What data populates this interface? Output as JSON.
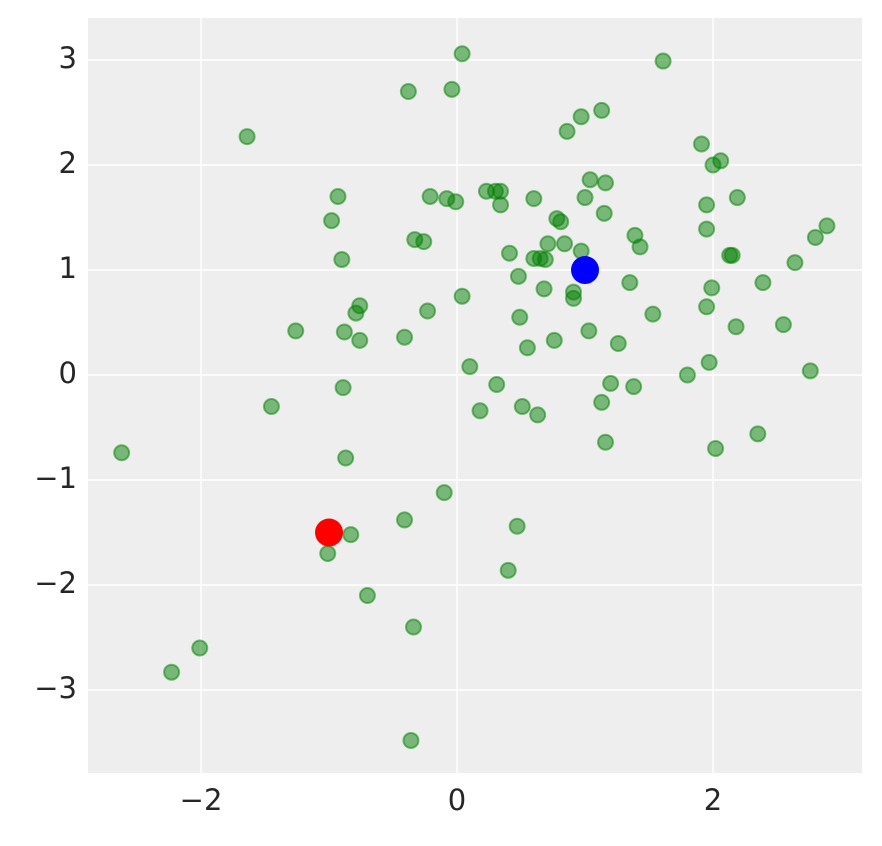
{
  "chart_data": {
    "type": "scatter",
    "xlim": [
      -2.883,
      3.164
    ],
    "ylim": [
      -3.79,
      3.4
    ],
    "xticks": [
      {
        "value": -2,
        "label": "−2"
      },
      0,
      2
    ],
    "yticks": [
      {
        "value": -3,
        "label": "−3"
      },
      {
        "value": -2,
        "label": "−2"
      },
      {
        "value": -1,
        "label": "−1"
      },
      0,
      1,
      2,
      3
    ],
    "grid": true,
    "series": [
      {
        "color": "green",
        "alpha": 0.5,
        "size": "small",
        "x": [
          -2.62,
          -1.64,
          -2.23,
          -2.01,
          -1.45,
          -1.26,
          -0.93,
          -0.98,
          -0.9,
          -0.79,
          -0.76,
          -0.88,
          -0.76,
          -0.89,
          -0.87,
          -0.83,
          -1.01,
          -0.7,
          -0.41,
          -0.41,
          -0.34,
          -0.36,
          -0.38,
          -0.04,
          0.04,
          -0.33,
          -0.26,
          -0.21,
          -0.08,
          -0.01,
          -0.23,
          0.04,
          0.1,
          -0.1,
          0.18,
          0.31,
          0.23,
          0.3,
          0.34,
          0.34,
          0.41,
          0.48,
          0.49,
          0.51,
          0.47,
          0.4,
          0.55,
          0.63,
          0.6,
          0.6,
          0.65,
          0.69,
          0.71,
          0.68,
          0.76,
          0.78,
          0.81,
          0.84,
          0.86,
          0.91,
          0.91,
          0.97,
          0.97,
          1.0,
          1.04,
          1.03,
          1.13,
          1.16,
          1.15,
          1.13,
          1.16,
          1.2,
          1.26,
          1.35,
          1.38,
          1.39,
          1.43,
          1.53,
          1.61,
          1.8,
          1.91,
          1.95,
          1.95,
          1.95,
          1.97,
          2.0,
          2.06,
          1.99,
          2.02,
          2.13,
          2.15,
          2.19,
          2.18,
          2.35,
          2.39,
          2.55,
          2.64,
          2.76,
          2.8,
          2.89
        ],
        "y": [
          -0.74,
          2.27,
          -2.83,
          -2.6,
          -0.3,
          0.42,
          1.7,
          1.47,
          1.1,
          0.59,
          0.66,
          0.41,
          0.33,
          -0.12,
          -0.79,
          -1.52,
          -1.7,
          -2.1,
          0.36,
          -1.38,
          -2.4,
          -3.48,
          2.7,
          2.72,
          3.06,
          1.29,
          1.27,
          1.7,
          1.68,
          1.65,
          0.61,
          0.75,
          0.08,
          -1.12,
          -0.34,
          -0.09,
          1.75,
          1.75,
          1.75,
          1.62,
          1.16,
          0.94,
          0.55,
          -0.3,
          -1.44,
          -1.86,
          0.26,
          -0.38,
          1.68,
          1.11,
          1.11,
          1.1,
          1.25,
          0.82,
          0.33,
          1.49,
          1.46,
          1.25,
          2.32,
          0.73,
          0.79,
          2.46,
          1.18,
          1.69,
          1.86,
          0.42,
          2.52,
          1.83,
          1.54,
          -0.26,
          -0.64,
          -0.08,
          0.3,
          0.88,
          -0.11,
          1.33,
          1.22,
          0.58,
          2.99,
          0.0,
          2.2,
          1.62,
          1.39,
          0.65,
          0.12,
          2.0,
          2.04,
          0.83,
          -0.7,
          1.14,
          1.14,
          1.69,
          0.46,
          -0.56,
          0.88,
          0.48,
          1.07,
          0.04,
          1.31,
          1.42
        ]
      },
      {
        "color": "red",
        "alpha": 1,
        "size": "large",
        "x": [
          -1
        ],
        "y": [
          -1.5
        ]
      },
      {
        "color": "blue",
        "alpha": 1,
        "size": "large",
        "x": [
          1
        ],
        "y": [
          1
        ]
      }
    ]
  }
}
